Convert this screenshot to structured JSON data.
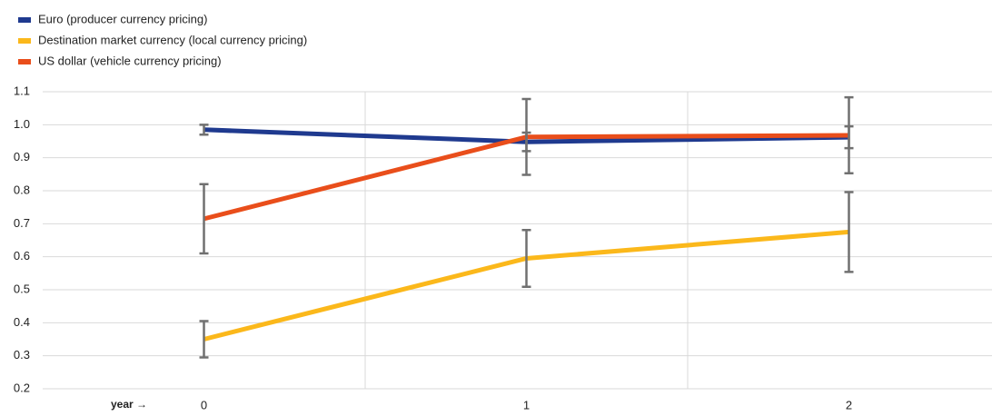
{
  "chart_data": {
    "type": "line",
    "xlabel": "year →",
    "categories": [
      "0",
      "1",
      "2"
    ],
    "series": [
      {
        "name": "Euro (producer  currency pricing)",
        "color": "#1f3a8f",
        "values": [
          0.985,
          0.948,
          0.962
        ],
        "errors": [
          0.015,
          0.028,
          0.033
        ]
      },
      {
        "name": "Destination  market currency (local currency pricing)",
        "color": "#fbb81b",
        "values": [
          0.35,
          0.595,
          0.675
        ],
        "errors": [
          0.055,
          0.086,
          0.121
        ]
      },
      {
        "name": "US dollar  (vehicle currency pricing)",
        "color": "#e94e1b",
        "values": [
          0.715,
          0.963,
          0.968
        ],
        "errors": [
          0.105,
          0.115,
          0.115
        ]
      }
    ],
    "error_color": "#707070",
    "ylim": [
      0.2,
      1.1
    ],
    "yticks": [
      {
        "value": 0.2,
        "label": "0.2"
      },
      {
        "value": 0.3,
        "label": "0.3"
      },
      {
        "value": 0.4,
        "label": "0.4"
      },
      {
        "value": 0.5,
        "label": "0.5"
      },
      {
        "value": 0.6,
        "label": "0.6"
      },
      {
        "value": 0.7,
        "label": "0.7"
      },
      {
        "value": 0.8,
        "label": "0.8"
      },
      {
        "value": 0.9,
        "label": "0.9"
      },
      {
        "value": 1.0,
        "label": "1.0"
      },
      {
        "value": 1.1,
        "label": "1.1"
      }
    ],
    "grid": true
  }
}
